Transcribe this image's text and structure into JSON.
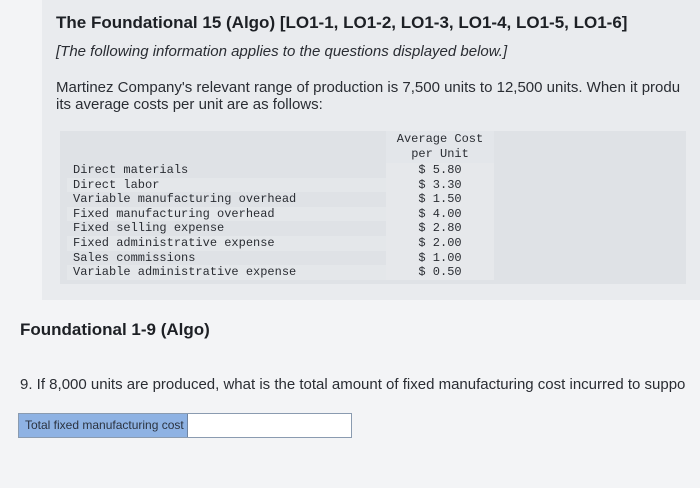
{
  "header": {
    "title": "The Foundational 15 (Algo) [LO1-1, LO1-2, LO1-3, LO1-4, LO1-5, LO1-6]",
    "subtitle": "[The following information applies to the questions displayed below.]",
    "intro_line1": "Martinez Company's relevant range of production is 7,500 units to 12,500 units. When it produ",
    "intro_line2": "its average costs per unit are as follows:"
  },
  "cost_table": {
    "column_header_line1": "Average Cost",
    "column_header_line2": "per Unit",
    "rows": [
      {
        "label": "Direct materials",
        "value": "$ 5.80"
      },
      {
        "label": "Direct labor",
        "value": "$ 3.30"
      },
      {
        "label": "Variable manufacturing overhead",
        "value": "$ 1.50"
      },
      {
        "label": "Fixed manufacturing overhead",
        "value": "$ 4.00"
      },
      {
        "label": "Fixed selling expense",
        "value": "$ 2.80"
      },
      {
        "label": "Fixed administrative expense",
        "value": "$ 2.00"
      },
      {
        "label": "Sales commissions",
        "value": "$ 1.00"
      },
      {
        "label": "Variable administrative expense",
        "value": "$ 0.50"
      }
    ]
  },
  "section": {
    "title": "Foundational 1-9 (Algo)"
  },
  "question": {
    "text": "9. If 8,000 units are produced, what is the total amount of fixed manufacturing cost incurred to suppo"
  },
  "answer": {
    "label": "Total fixed manufacturing cost",
    "value": ""
  }
}
